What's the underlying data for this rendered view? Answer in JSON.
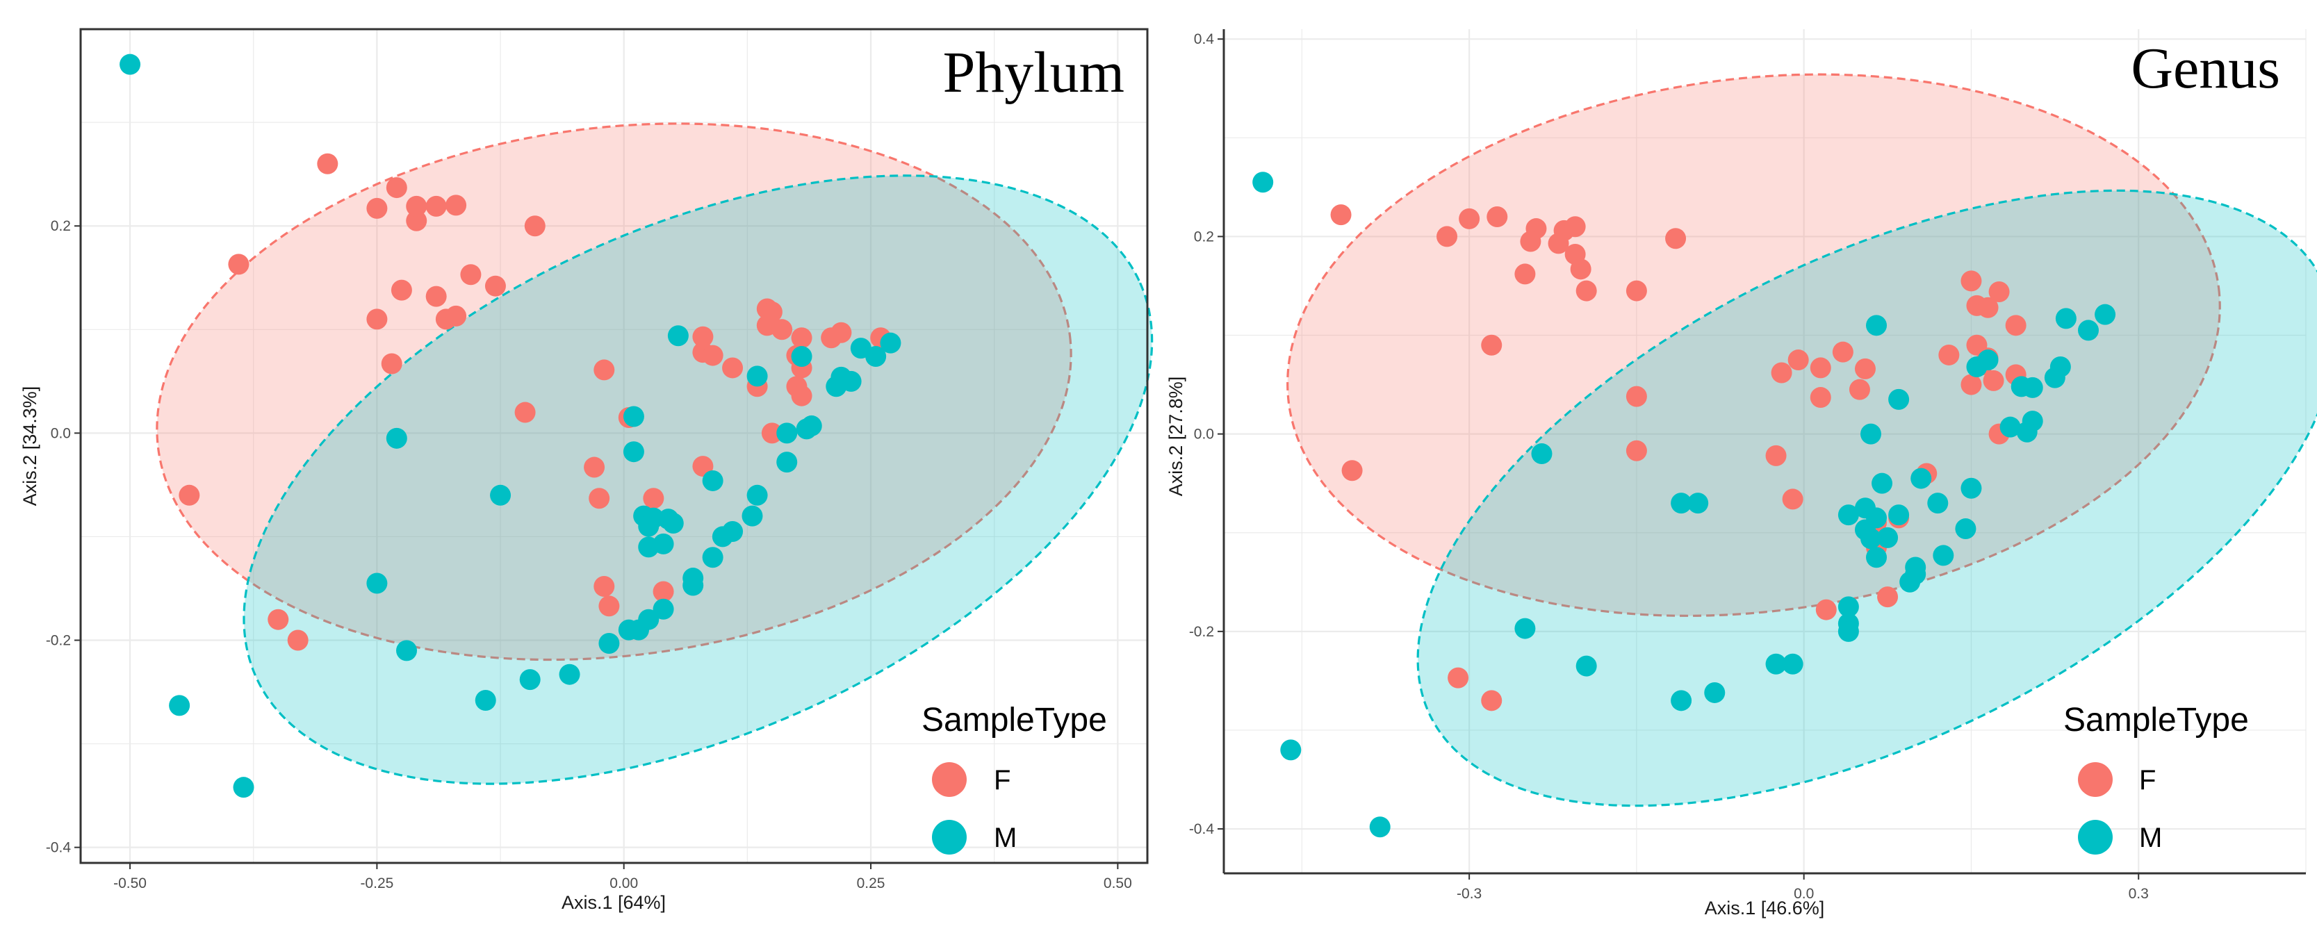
{
  "colors": {
    "F": "#F8766D",
    "M": "#00BFC4",
    "grid": "#ebebeb",
    "frame": "#333333"
  },
  "legend": {
    "title": "SampleType",
    "entries": [
      "F",
      "M"
    ]
  },
  "chart_data": [
    {
      "type": "scatter",
      "title": "Phylum",
      "xlabel": "Axis.1   [64%]",
      "ylabel": "Axis.2   [34.3%]",
      "xlim": [
        -0.55,
        0.53
      ],
      "ylim": [
        -0.415,
        0.39
      ],
      "xticks": [
        -0.5,
        -0.25,
        0.0,
        0.25,
        0.5
      ],
      "xtick_labels": [
        "-0.50",
        "-0.25",
        "0.00",
        "0.25",
        "0.50"
      ],
      "yticks": [
        -0.4,
        -0.2,
        0.0,
        0.2
      ],
      "ytick_labels": [
        "-0.4",
        "-0.2",
        "0.0",
        "0.2"
      ],
      "ellipses": [
        {
          "group": "F",
          "cx": -0.01,
          "cy": 0.04,
          "rx": 0.465,
          "ry": 0.255,
          "angle_deg": -7
        },
        {
          "group": "M",
          "cx": 0.075,
          "cy": -0.045,
          "rx": 0.49,
          "ry": 0.245,
          "angle_deg": -24
        }
      ],
      "series": [
        {
          "name": "F",
          "points": [
            [
              -0.3,
              0.26
            ],
            [
              -0.23,
              0.237
            ],
            [
              -0.25,
              0.217
            ],
            [
              -0.21,
              0.205
            ],
            [
              -0.21,
              0.219
            ],
            [
              -0.19,
              0.219
            ],
            [
              -0.17,
              0.22
            ],
            [
              -0.09,
              0.2
            ],
            [
              -0.39,
              0.163
            ],
            [
              -0.155,
              0.153
            ],
            [
              -0.13,
              0.142
            ],
            [
              -0.225,
              0.138
            ],
            [
              -0.19,
              0.132
            ],
            [
              -0.18,
              0.11
            ],
            [
              -0.17,
              0.113
            ],
            [
              -0.25,
              0.11
            ],
            [
              -0.235,
              0.067
            ],
            [
              -0.02,
              0.061
            ],
            [
              -0.1,
              0.02
            ],
            [
              0.005,
              0.015
            ],
            [
              -0.44,
              -0.06
            ],
            [
              -0.33,
              -0.2
            ],
            [
              -0.35,
              -0.18
            ],
            [
              -0.03,
              -0.033
            ],
            [
              -0.025,
              -0.063
            ],
            [
              0.03,
              -0.063
            ],
            [
              0.08,
              -0.032
            ],
            [
              -0.02,
              -0.148
            ],
            [
              -0.015,
              -0.167
            ],
            [
              0.04,
              -0.153
            ],
            [
              0.08,
              0.093
            ],
            [
              0.08,
              0.078
            ],
            [
              0.09,
              0.075
            ],
            [
              0.11,
              0.063
            ],
            [
              0.145,
              0.12
            ],
            [
              0.15,
              0.117
            ],
            [
              0.145,
              0.104
            ],
            [
              0.16,
              0.1
            ],
            [
              0.18,
              0.092
            ],
            [
              0.21,
              0.092
            ],
            [
              0.22,
              0.097
            ],
            [
              0.26,
              0.092
            ],
            [
              0.175,
              0.075
            ],
            [
              0.18,
              0.063
            ],
            [
              0.135,
              0.045
            ],
            [
              0.175,
              0.045
            ],
            [
              0.18,
              0.036
            ],
            [
              0.15,
              0.0
            ]
          ]
        },
        {
          "name": "M",
          "points": [
            [
              -0.5,
              0.356
            ],
            [
              0.055,
              0.094
            ],
            [
              0.135,
              0.055
            ],
            [
              0.18,
              0.074
            ],
            [
              0.22,
              0.054
            ],
            [
              0.215,
              0.045
            ],
            [
              0.23,
              0.05
            ],
            [
              0.24,
              0.082
            ],
            [
              0.255,
              0.074
            ],
            [
              0.27,
              0.087
            ],
            [
              0.19,
              0.007
            ],
            [
              0.185,
              0.004
            ],
            [
              0.165,
              0.0
            ],
            [
              0.165,
              -0.028
            ],
            [
              0.01,
              0.016
            ],
            [
              0.01,
              -0.018
            ],
            [
              -0.23,
              -0.005
            ],
            [
              -0.125,
              -0.06
            ],
            [
              0.09,
              -0.046
            ],
            [
              0.135,
              -0.06
            ],
            [
              0.13,
              -0.08
            ],
            [
              0.11,
              -0.095
            ],
            [
              0.1,
              -0.1
            ],
            [
              0.02,
              -0.08
            ],
            [
              0.03,
              -0.082
            ],
            [
              0.045,
              -0.083
            ],
            [
              0.05,
              -0.087
            ],
            [
              0.025,
              -0.09
            ],
            [
              0.04,
              -0.107
            ],
            [
              0.025,
              -0.11
            ],
            [
              0.09,
              -0.12
            ],
            [
              0.07,
              -0.14
            ],
            [
              0.07,
              -0.147
            ],
            [
              0.04,
              -0.17
            ],
            [
              0.025,
              -0.18
            ],
            [
              0.005,
              -0.19
            ],
            [
              0.015,
              -0.19
            ],
            [
              -0.015,
              -0.203
            ],
            [
              -0.25,
              -0.145
            ],
            [
              -0.22,
              -0.21
            ],
            [
              -0.45,
              -0.263
            ],
            [
              -0.385,
              -0.342
            ],
            [
              -0.14,
              -0.258
            ],
            [
              -0.095,
              -0.238
            ],
            [
              -0.055,
              -0.233
            ]
          ]
        }
      ]
    },
    {
      "type": "scatter",
      "title": "Genus",
      "xlabel": "Axis.1   [46.6%]",
      "ylabel": "Axis.2   [27.8%]",
      "xlim": [
        -0.52,
        0.45
      ],
      "ylim": [
        -0.445,
        0.41
      ],
      "xticks": [
        -0.3,
        0.0,
        0.3
      ],
      "xtick_labels": [
        "-0.3",
        "0.0",
        "0.3"
      ],
      "yticks": [
        -0.4,
        -0.2,
        0.0,
        0.2,
        0.4
      ],
      "ytick_labels": [
        "-0.4",
        "-0.2",
        "0.0",
        "0.2",
        "0.4"
      ],
      "ellipses": [
        {
          "group": "F",
          "cx": -0.045,
          "cy": 0.09,
          "rx": 0.42,
          "ry": 0.27,
          "angle_deg": -7
        },
        {
          "group": "M",
          "cx": 0.065,
          "cy": -0.065,
          "rx": 0.445,
          "ry": 0.245,
          "angle_deg": -26
        }
      ],
      "series": [
        {
          "name": "F",
          "points": [
            [
              -0.415,
              0.222
            ],
            [
              -0.32,
              0.2
            ],
            [
              -0.3,
              0.218
            ],
            [
              -0.275,
              0.22
            ],
            [
              -0.24,
              0.208
            ],
            [
              -0.215,
              0.206
            ],
            [
              -0.205,
              0.21
            ],
            [
              -0.245,
              0.195
            ],
            [
              -0.22,
              0.193
            ],
            [
              -0.205,
              0.182
            ],
            [
              -0.2,
              0.167
            ],
            [
              -0.115,
              0.198
            ],
            [
              -0.25,
              0.162
            ],
            [
              -0.195,
              0.145
            ],
            [
              -0.15,
              0.145
            ],
            [
              -0.405,
              -0.037
            ],
            [
              -0.28,
              0.09
            ],
            [
              -0.15,
              0.038
            ],
            [
              -0.15,
              -0.017
            ],
            [
              -0.02,
              0.062
            ],
            [
              -0.005,
              0.075
            ],
            [
              0.015,
              0.067
            ],
            [
              0.035,
              0.083
            ],
            [
              0.055,
              0.066
            ],
            [
              0.015,
              0.037
            ],
            [
              0.05,
              0.045
            ],
            [
              -0.025,
              -0.022
            ],
            [
              -0.01,
              -0.066
            ],
            [
              0.065,
              -0.09
            ],
            [
              0.065,
              -0.115
            ],
            [
              0.11,
              -0.04
            ],
            [
              0.085,
              -0.085
            ],
            [
              0.075,
              -0.165
            ],
            [
              0.02,
              -0.178
            ],
            [
              -0.31,
              -0.247
            ],
            [
              -0.28,
              -0.27
            ],
            [
              0.13,
              0.08
            ],
            [
              0.15,
              0.155
            ],
            [
              0.155,
              0.13
            ],
            [
              0.165,
              0.128
            ],
            [
              0.175,
              0.144
            ],
            [
              0.155,
              0.09
            ],
            [
              0.165,
              0.077
            ],
            [
              0.16,
              0.07
            ],
            [
              0.15,
              0.05
            ],
            [
              0.17,
              0.054
            ],
            [
              0.19,
              0.11
            ],
            [
              0.19,
              0.06
            ],
            [
              0.175,
              0.0
            ]
          ]
        },
        {
          "name": "M",
          "points": [
            [
              -0.485,
              0.255
            ],
            [
              0.065,
              0.11
            ],
            [
              0.235,
              0.117
            ],
            [
              0.27,
              0.121
            ],
            [
              0.255,
              0.105
            ],
            [
              0.155,
              0.068
            ],
            [
              0.165,
              0.075
            ],
            [
              0.23,
              0.068
            ],
            [
              0.225,
              0.057
            ],
            [
              0.195,
              0.048
            ],
            [
              0.205,
              0.047
            ],
            [
              0.185,
              0.007
            ],
            [
              0.205,
              0.013
            ],
            [
              0.2,
              0.002
            ],
            [
              0.085,
              0.035
            ],
            [
              0.06,
              0.0
            ],
            [
              -0.235,
              -0.02
            ],
            [
              -0.11,
              -0.07
            ],
            [
              -0.095,
              -0.07
            ],
            [
              0.15,
              -0.055
            ],
            [
              0.105,
              -0.045
            ],
            [
              0.12,
              -0.07
            ],
            [
              0.07,
              -0.05
            ],
            [
              0.04,
              -0.082
            ],
            [
              0.055,
              -0.075
            ],
            [
              0.065,
              -0.085
            ],
            [
              0.085,
              -0.082
            ],
            [
              0.055,
              -0.097
            ],
            [
              0.06,
              -0.106
            ],
            [
              0.075,
              -0.105
            ],
            [
              0.065,
              -0.125
            ],
            [
              0.145,
              -0.096
            ],
            [
              0.125,
              -0.123
            ],
            [
              0.1,
              -0.135
            ],
            [
              0.1,
              -0.142
            ],
            [
              0.095,
              -0.15
            ],
            [
              0.04,
              -0.175
            ],
            [
              0.04,
              -0.192
            ],
            [
              0.04,
              -0.2
            ],
            [
              -0.025,
              -0.233
            ],
            [
              -0.01,
              -0.233
            ],
            [
              -0.25,
              -0.197
            ],
            [
              -0.195,
              -0.235
            ],
            [
              -0.11,
              -0.27
            ],
            [
              -0.08,
              -0.262
            ],
            [
              -0.46,
              -0.32
            ],
            [
              -0.38,
              -0.398
            ]
          ]
        }
      ]
    }
  ]
}
